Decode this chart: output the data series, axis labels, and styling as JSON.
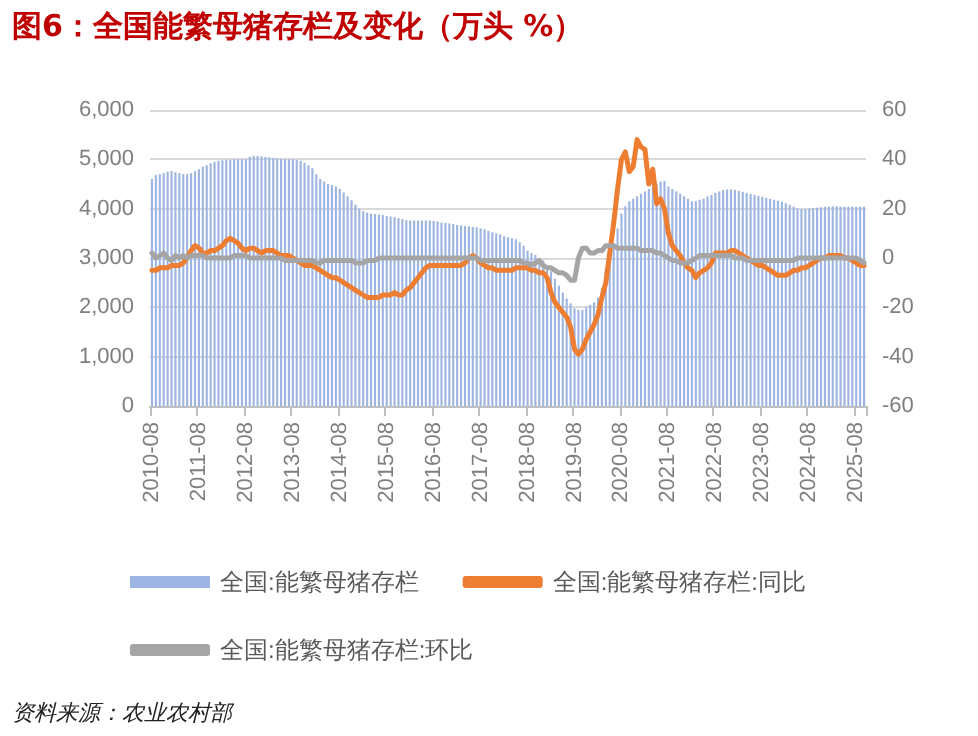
{
  "chart_data": {
    "type": "bar",
    "title": "图6：全国能繁母猪存栏及变化（万头 %）",
    "annotations": [
      "资料来源：农业农村部"
    ],
    "categories": [
      "2010-08",
      null,
      null,
      null,
      null,
      null,
      null,
      null,
      null,
      null,
      null,
      null,
      "2011-08",
      null,
      null,
      null,
      null,
      null,
      null,
      null,
      null,
      null,
      null,
      null,
      "2012-08",
      null,
      null,
      null,
      null,
      null,
      null,
      null,
      null,
      null,
      null,
      null,
      "2013-08",
      null,
      null,
      null,
      null,
      null,
      null,
      null,
      null,
      null,
      null,
      null,
      "2014-08",
      null,
      null,
      null,
      null,
      null,
      null,
      null,
      null,
      null,
      null,
      null,
      "2015-08",
      null,
      null,
      null,
      null,
      null,
      null,
      null,
      null,
      null,
      null,
      null,
      "2016-08",
      null,
      null,
      null,
      null,
      null,
      null,
      null,
      null,
      null,
      null,
      null,
      "2017-08",
      null,
      null,
      null,
      null,
      null,
      null,
      null,
      null,
      null,
      null,
      null,
      "2018-08",
      null,
      null,
      null,
      null,
      null,
      null,
      null,
      null,
      null,
      null,
      null,
      "2019-08",
      null,
      null,
      null,
      null,
      null,
      null,
      null,
      null,
      null,
      null,
      null,
      "2020-08",
      null,
      null,
      null,
      null,
      null,
      null,
      null,
      null,
      null,
      null,
      null,
      "2021-08",
      null,
      null,
      null,
      null,
      null,
      null,
      null,
      null,
      null,
      null,
      null,
      "2022-08",
      null,
      null,
      null,
      null,
      null,
      null,
      null,
      null,
      null,
      null,
      null,
      "2023-08",
      null,
      null,
      null,
      null,
      null,
      null,
      null,
      null,
      null,
      null,
      null,
      "2024-08",
      null,
      null,
      null,
      null,
      null,
      null,
      null,
      null,
      null,
      null,
      null,
      "2025-08",
      null,
      null
    ],
    "series": [
      {
        "name": "全国:能繁母猪存栏",
        "color": "#9db5e3",
        "values": [
          4600,
          4680,
          4700,
          4720,
          4750,
          4760,
          4740,
          4720,
          4700,
          4700,
          4720,
          4760,
          4800,
          4850,
          4880,
          4920,
          4950,
          4970,
          4980,
          4990,
          4990,
          5000,
          5000,
          5000,
          5000,
          5050,
          5070,
          5070,
          5060,
          5050,
          5040,
          5030,
          5020,
          5010,
          5000,
          5000,
          5000,
          4990,
          4970,
          4930,
          4880,
          4820,
          4700,
          4600,
          4550,
          4500,
          4480,
          4450,
          4400,
          4330,
          4250,
          4170,
          4080,
          4000,
          3950,
          3920,
          3900,
          3890,
          3880,
          3870,
          3850,
          3840,
          3830,
          3810,
          3790,
          3770,
          3760,
          3760,
          3760,
          3760,
          3760,
          3760,
          3750,
          3740,
          3720,
          3710,
          3700,
          3690,
          3670,
          3660,
          3650,
          3640,
          3630,
          3620,
          3600,
          3580,
          3550,
          3520,
          3500,
          3480,
          3440,
          3420,
          3400,
          3380,
          3320,
          3250,
          3150,
          3100,
          3060,
          3000,
          2950,
          2850,
          2730,
          2580,
          2440,
          2300,
          2180,
          2080,
          1980,
          1950,
          1950,
          2000,
          2050,
          2100,
          2200,
          2400,
          2800,
          3000,
          3300,
          3600,
          3900,
          4050,
          4150,
          4200,
          4250,
          4300,
          4350,
          4400,
          4450,
          4500,
          4550,
          4560,
          4450,
          4400,
          4350,
          4300,
          4250,
          4200,
          4150,
          4150,
          4180,
          4200,
          4250,
          4280,
          4320,
          4350,
          4380,
          4390,
          4390,
          4380,
          4360,
          4340,
          4320,
          4300,
          4280,
          4260,
          4240,
          4220,
          4200,
          4180,
          4160,
          4140,
          4110,
          4080,
          4040,
          4000,
          3990,
          3990,
          4000,
          4010,
          4020,
          4030,
          4040,
          4040,
          4050,
          4050,
          4040,
          4040,
          4040,
          4040,
          4040,
          4040,
          4040
        ]
      },
      {
        "name": "全国:能繁母猪存栏:同比",
        "type": "line",
        "axis": "y2",
        "color": "#ed7d31",
        "values": [
          -5,
          -5,
          -4,
          -4,
          -4,
          -3,
          -3,
          -3,
          -2,
          0,
          3,
          5,
          4,
          2,
          2,
          3,
          3,
          4,
          5,
          7,
          8,
          7,
          6,
          4,
          3,
          4,
          4,
          3,
          2,
          3,
          3,
          3,
          2,
          1,
          1,
          1,
          0,
          -1,
          -2,
          -3,
          -3,
          -3,
          -4,
          -5,
          -6,
          -7,
          -8,
          -8,
          -9,
          -10,
          -11,
          -12,
          -13,
          -14,
          -15,
          -16,
          -16,
          -16,
          -16,
          -15,
          -15,
          -15,
          -14,
          -15,
          -15,
          -13,
          -12,
          -10,
          -8,
          -6,
          -4,
          -3,
          -3,
          -3,
          -3,
          -3,
          -3,
          -3,
          -3,
          -3,
          -2,
          0,
          1,
          0,
          -2,
          -3,
          -4,
          -4,
          -5,
          -5,
          -5,
          -5,
          -5,
          -4,
          -4,
          -4,
          -4,
          -5,
          -5,
          -6,
          -6,
          -8,
          -14,
          -18,
          -20,
          -22,
          -24,
          -28,
          -37,
          -39,
          -37,
          -33,
          -30,
          -27,
          -23,
          -16,
          -10,
          2,
          14,
          28,
          40,
          43,
          35,
          37,
          48,
          45,
          44,
          30,
          36,
          22,
          24,
          20,
          10,
          5,
          3,
          1,
          -2,
          -4,
          -5,
          -8,
          -6,
          -5,
          -4,
          -2,
          2,
          2,
          2,
          2,
          3,
          3,
          2,
          1,
          0,
          -1,
          -2,
          -3,
          -3,
          -4,
          -5,
          -6,
          -7,
          -7,
          -7,
          -6,
          -5,
          -5,
          -4,
          -4,
          -3,
          -2,
          -1,
          0,
          0,
          1,
          1,
          1,
          1,
          0,
          0,
          -1,
          -2,
          -3,
          -3
        ]
      },
      {
        "name": "全国:能繁母猪存栏:环比",
        "type": "line",
        "axis": "y2",
        "color": "#a5a5a5",
        "values": [
          2,
          0,
          1,
          2,
          0,
          -1,
          1,
          0,
          1,
          0,
          1,
          1,
          1,
          1,
          0,
          0,
          0,
          0,
          0,
          0,
          0,
          1,
          1,
          1,
          1,
          0,
          0,
          0,
          0,
          0,
          0,
          0,
          0,
          0,
          -1,
          -1,
          -1,
          -1,
          -1,
          -1,
          -1,
          -1,
          -2,
          -2,
          -1,
          -1,
          -1,
          -1,
          -1,
          -1,
          -1,
          -1,
          -2,
          -2,
          -2,
          -1,
          -1,
          -1,
          0,
          0,
          0,
          0,
          0,
          0,
          0,
          0,
          0,
          0,
          0,
          0,
          0,
          0,
          0,
          0,
          0,
          0,
          0,
          0,
          0,
          0,
          0,
          0,
          0,
          0,
          -1,
          -1,
          -1,
          -1,
          -1,
          -1,
          -1,
          -1,
          -1,
          -1,
          -1,
          -2,
          -2,
          -3,
          -2,
          -1,
          -3,
          -4,
          -4,
          -5,
          -6,
          -6,
          -7,
          -9,
          -9,
          0,
          4,
          4,
          2,
          2,
          3,
          3,
          5,
          5,
          5,
          4,
          4,
          4,
          4,
          4,
          4,
          3,
          3,
          3,
          3,
          2,
          2,
          1,
          0,
          -1,
          -1,
          -2,
          -2,
          -2,
          -1,
          0,
          1,
          1,
          1,
          1,
          1,
          1,
          1,
          1,
          1,
          0,
          0,
          0,
          -1,
          -1,
          -1,
          -1,
          -1,
          -1,
          -1,
          -1,
          -1,
          -1,
          -1,
          -1,
          -1,
          0,
          0,
          0,
          0,
          0,
          0,
          0,
          0,
          0,
          0,
          0,
          0,
          0,
          0,
          0,
          0,
          -1,
          -2
        ]
      }
    ],
    "ylim": [
      0,
      6000
    ],
    "yticks": [
      0,
      {
        "value": 1000,
        "label": "1,000"
      },
      {
        "value": 2000,
        "label": "2,000"
      },
      {
        "value": 3000,
        "label": "3,000"
      },
      {
        "value": 4000,
        "label": "4,000"
      },
      {
        "value": 5000,
        "label": "5,000"
      },
      {
        "value": 6000,
        "label": "6,000"
      }
    ],
    "y2lim": [
      -60,
      60
    ],
    "y2ticks": [
      -60,
      -40,
      -20,
      0,
      20,
      40,
      60
    ],
    "grid": "y",
    "legend": "bottom",
    "marker": "none",
    "line_style": "solid"
  }
}
